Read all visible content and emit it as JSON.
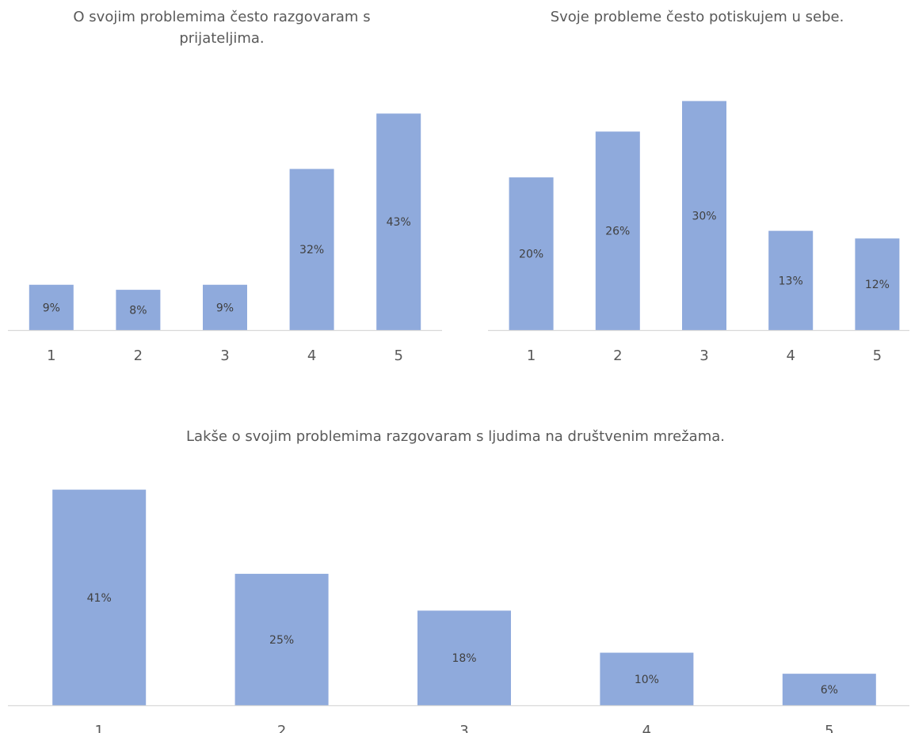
{
  "chart_data": [
    {
      "type": "bar",
      "title": "O svojim problemima često razgovaram s prijateljima.",
      "categories": [
        "1",
        "2",
        "3",
        "4",
        "5"
      ],
      "values": [
        9,
        8,
        9,
        32,
        43
      ],
      "data_labels": [
        "9%",
        "8%",
        "9%",
        "32%",
        "43%"
      ],
      "ylim": [
        0,
        47
      ],
      "grid": false,
      "bar_color": "#8faadc"
    },
    {
      "type": "bar",
      "title": "Svoje probleme često potiskujem u sebe.",
      "categories": [
        "1",
        "2",
        "3",
        "4",
        "5"
      ],
      "values": [
        20,
        26,
        30,
        13,
        12
      ],
      "data_labels": [
        "20%",
        "26%",
        "30%",
        "13%",
        "12%"
      ],
      "ylim": [
        0,
        31
      ],
      "grid": false,
      "bar_color": "#8faadc"
    },
    {
      "type": "bar",
      "title": "Lakše o svojim problemima razgovaram s ljudima na društvenim mrežama.",
      "categories": [
        "1",
        "2",
        "3",
        "4",
        "5"
      ],
      "values": [
        41,
        25,
        18,
        10,
        6
      ],
      "data_labels": [
        "41%",
        "25%",
        "18%",
        "10%",
        "6%"
      ],
      "ylim": [
        0,
        45
      ],
      "grid": false,
      "bar_color": "#8faadc"
    }
  ]
}
